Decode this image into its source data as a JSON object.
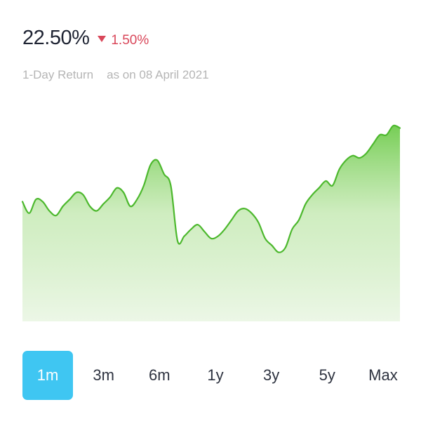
{
  "summary": {
    "return_value": "22.50%",
    "change_value": "1.50%",
    "change_direction": "down",
    "change_color": "#d9475a",
    "return_label": "1-Day Return",
    "as_on_label": "as on 08 April 2021"
  },
  "chart_data": {
    "type": "area",
    "line_color": "#4cb82d",
    "fill_top_color": "#6fcb4c",
    "fill_bottom_color": "#eaf6e4",
    "values": [
      52,
      47,
      53,
      52,
      48,
      46,
      50,
      53,
      56,
      55,
      50,
      48,
      51,
      54,
      58,
      56,
      50,
      53,
      59,
      68,
      70,
      64,
      59,
      35,
      37,
      40,
      42,
      39,
      36,
      37,
      40,
      44,
      48,
      49,
      47,
      43,
      36,
      33,
      30,
      32,
      40,
      44,
      51,
      55,
      58,
      61,
      59,
      66,
      70,
      72,
      71,
      73,
      77,
      81,
      81,
      85,
      84
    ],
    "ylim": [
      0,
      100
    ],
    "grid": false,
    "legend": "none"
  },
  "ranges": {
    "selected": "1m",
    "items": [
      {
        "key": "1m",
        "label": "1m"
      },
      {
        "key": "3m",
        "label": "3m"
      },
      {
        "key": "6m",
        "label": "6m"
      },
      {
        "key": "1y",
        "label": "1y"
      },
      {
        "key": "3y",
        "label": "3y"
      },
      {
        "key": "5y",
        "label": "5y"
      },
      {
        "key": "max",
        "label": "Max"
      }
    ]
  }
}
